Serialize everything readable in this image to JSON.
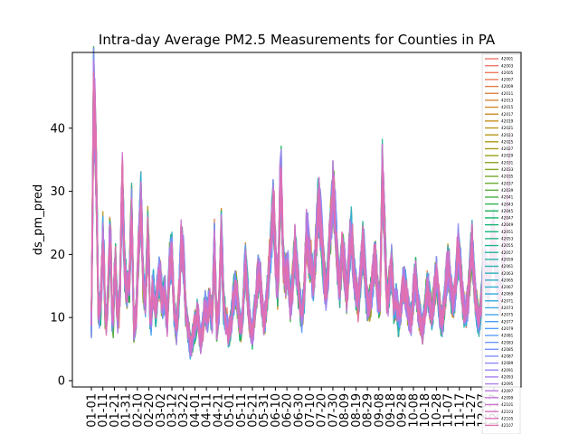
{
  "chart_data": {
    "type": "line",
    "title": "Intra-day Average PM2.5 Measurements for Counties in PA",
    "xlabel": "",
    "ylabel": "ds_pm_pred",
    "xlim": [
      "01-01",
      "12-31"
    ],
    "ylim": [
      -1,
      52
    ],
    "yticks": [
      0,
      10,
      20,
      30,
      40
    ],
    "xticks": [
      "01-01",
      "01-11",
      "01-21",
      "01-31",
      "02-10",
      "02-20",
      "03-02",
      "03-12",
      "03-22",
      "04-01",
      "04-11",
      "04-21",
      "05-01",
      "05-11",
      "05-21",
      "05-31",
      "06-10",
      "06-20",
      "06-30",
      "07-10",
      "07-20",
      "07-30",
      "08-09",
      "08-19",
      "08-29",
      "09-08",
      "09-18",
      "09-28",
      "10-08",
      "10-18",
      "10-28",
      "11-07",
      "11-17",
      "11-27",
      "12-07",
      "12-17"
    ],
    "grid": false,
    "legend_position": "right",
    "series_count_note": "",
    "series": [
      {
        "name": "42001",
        "color": "#f0766e"
      },
      {
        "name": "42003",
        "color": "#ee7768"
      },
      {
        "name": "42005",
        "color": "#eb7a5e"
      },
      {
        "name": "42007",
        "color": "#e77d55"
      },
      {
        "name": "42009",
        "color": "#e3804b"
      },
      {
        "name": "42011",
        "color": "#de8341"
      },
      {
        "name": "42013",
        "color": "#d98737"
      },
      {
        "name": "42015",
        "color": "#d38a2e"
      },
      {
        "name": "42017",
        "color": "#cc8d26"
      },
      {
        "name": "42019",
        "color": "#c5901f"
      },
      {
        "name": "42021",
        "color": "#bd941a"
      },
      {
        "name": "42023",
        "color": "#b59718"
      },
      {
        "name": "42025",
        "color": "#ac9a17"
      },
      {
        "name": "42027",
        "color": "#a39d18"
      },
      {
        "name": "42029",
        "color": "#99a01b"
      },
      {
        "name": "42031",
        "color": "#8fa31f"
      },
      {
        "name": "42033",
        "color": "#84a625"
      },
      {
        "name": "42035",
        "color": "#78a82c"
      },
      {
        "name": "42037",
        "color": "#6aab34"
      },
      {
        "name": "42039",
        "color": "#5bad3d"
      },
      {
        "name": "42041",
        "color": "#4aaf47"
      },
      {
        "name": "42043",
        "color": "#35b151"
      },
      {
        "name": "42045",
        "color": "#1fb25b"
      },
      {
        "name": "42047",
        "color": "#12b366"
      },
      {
        "name": "42049",
        "color": "#14b471"
      },
      {
        "name": "42051",
        "color": "#19b47c"
      },
      {
        "name": "42053",
        "color": "#1eb487"
      },
      {
        "name": "42055",
        "color": "#22b492"
      },
      {
        "name": "42057",
        "color": "#25b39c"
      },
      {
        "name": "42059",
        "color": "#28b3a6"
      },
      {
        "name": "42061",
        "color": "#2ab2b0"
      },
      {
        "name": "42063",
        "color": "#2cb1ba"
      },
      {
        "name": "42065",
        "color": "#2eb0c3"
      },
      {
        "name": "42067",
        "color": "#30aecc"
      },
      {
        "name": "42069",
        "color": "#33acd5"
      },
      {
        "name": "42071",
        "color": "#37aadd"
      },
      {
        "name": "42073",
        "color": "#3ca8e5"
      },
      {
        "name": "42075",
        "color": "#43a5ec"
      },
      {
        "name": "42077",
        "color": "#4ba2f2"
      },
      {
        "name": "42079",
        "color": "#559ff6"
      },
      {
        "name": "42081",
        "color": "#609bf9"
      },
      {
        "name": "42083",
        "color": "#6b97fb"
      },
      {
        "name": "42085",
        "color": "#7793fb"
      },
      {
        "name": "42087",
        "color": "#838ef9"
      },
      {
        "name": "42089",
        "color": "#8f8af6"
      },
      {
        "name": "42091",
        "color": "#9a85f2"
      },
      {
        "name": "42093",
        "color": "#a581ed"
      },
      {
        "name": "42095",
        "color": "#b07de6"
      },
      {
        "name": "42097",
        "color": "#ba79df"
      },
      {
        "name": "42099",
        "color": "#c376d6"
      },
      {
        "name": "42101",
        "color": "#cc73cd"
      },
      {
        "name": "42103",
        "color": "#d471c3"
      },
      {
        "name": "42105",
        "color": "#db70b8"
      },
      {
        "name": "42107",
        "color": "#e270ad"
      }
    ],
    "representative_values": [
      9,
      47,
      34,
      10,
      12,
      24,
      8,
      13,
      25,
      6,
      20,
      10,
      12,
      33,
      18,
      14,
      15,
      27,
      8,
      11,
      21,
      29,
      14,
      13,
      25,
      7,
      16,
      10,
      15,
      17,
      12,
      14,
      9,
      18,
      20,
      11,
      8,
      13,
      22,
      19,
      10,
      8,
      5,
      7,
      9,
      11,
      6,
      8,
      12,
      10,
      13,
      9,
      22,
      8,
      12,
      24,
      11,
      10,
      7,
      9,
      13,
      15,
      12,
      8,
      10,
      19,
      14,
      9,
      7,
      11,
      15,
      18,
      13,
      9,
      12,
      17,
      22,
      29,
      18,
      14,
      35,
      20,
      16,
      18,
      12,
      15,
      21,
      17,
      13,
      10,
      14,
      24,
      20,
      18,
      15,
      22,
      28,
      25,
      19,
      14,
      17,
      23,
      30,
      27,
      19,
      15,
      21,
      18,
      13,
      20,
      24,
      17,
      14,
      12,
      18,
      22,
      15,
      11,
      13,
      16,
      20,
      14,
      12,
      33,
      24,
      12,
      15,
      18,
      11,
      13,
      9,
      12,
      16,
      14,
      11,
      9,
      13,
      17,
      12,
      10,
      8,
      11,
      15,
      13,
      10,
      14,
      17,
      12,
      9,
      11,
      16,
      19,
      14,
      12,
      15,
      21,
      18,
      13,
      10,
      12,
      17,
      22,
      15,
      11,
      9,
      13,
      19,
      17,
      14,
      20,
      24,
      18,
      15,
      12,
      19,
      23,
      29,
      36
    ]
  }
}
